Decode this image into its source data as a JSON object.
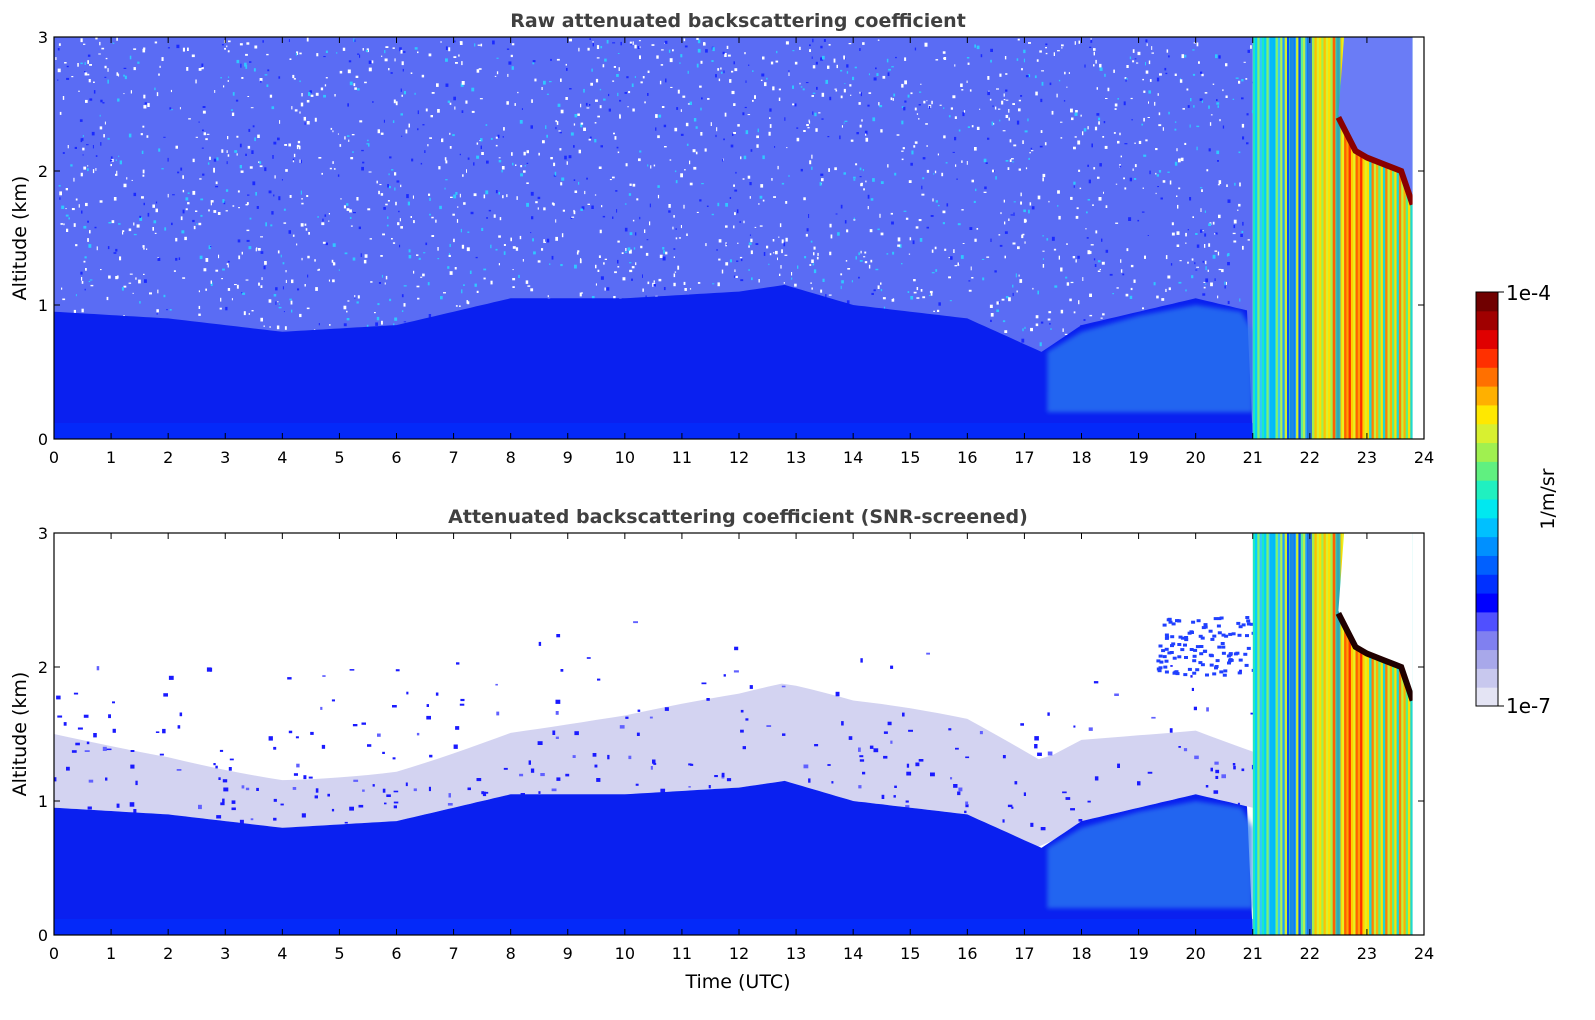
{
  "figure": {
    "xlabel": "Time (UTC)",
    "colorbar": {
      "label": "1/m/sr",
      "max_label": "1e-4",
      "min_label": "1e-7",
      "scale": "log",
      "colors": [
        "#e4e4f4",
        "#c8c8ee",
        "#a8a8ea",
        "#8080f0",
        "#5050ff",
        "#0000ff",
        "#0030ff",
        "#0060ff",
        "#0090ff",
        "#00c0ff",
        "#00e8f0",
        "#20f0c0",
        "#60f080",
        "#a0f050",
        "#d8f030",
        "#ffe800",
        "#ffb000",
        "#ff7000",
        "#ff3000",
        "#e00000",
        "#a00000",
        "#700000"
      ]
    }
  },
  "chart_data": [
    {
      "type": "heatmap",
      "title": "Raw attenuated backscattering coefficient",
      "ylabel": "Altitude (km)",
      "xlabel": "",
      "xlim": [
        0,
        24
      ],
      "ylim": [
        0,
        3
      ],
      "xticks": [
        "0",
        "1",
        "2",
        "3",
        "4",
        "5",
        "6",
        "7",
        "8",
        "9",
        "10",
        "11",
        "12",
        "13",
        "14",
        "15",
        "16",
        "17",
        "18",
        "19",
        "20",
        "21",
        "22",
        "23",
        "24"
      ],
      "yticks": [
        "0",
        "1",
        "2",
        "3"
      ],
      "colorscale_min": "1e-7",
      "colorscale_max": "1e-4",
      "screened": false,
      "boundary_layer_top_km": {
        "hours": [
          0,
          2,
          4,
          6,
          8,
          10,
          12,
          12.8,
          14,
          16,
          17.3,
          18,
          19,
          20,
          21
        ],
        "values": [
          0.95,
          0.9,
          0.8,
          0.85,
          1.05,
          1.05,
          1.1,
          1.15,
          1.0,
          0.9,
          0.65,
          0.85,
          0.95,
          1.05,
          0.95
        ]
      },
      "cloud_layer_top_km": {
        "hours": [
          22.5,
          22.8,
          23.0,
          23.3,
          23.6,
          23.8
        ],
        "values": [
          2.4,
          2.15,
          2.1,
          2.05,
          2.0,
          1.75
        ]
      },
      "precip_onset_hour": 21.0,
      "data_end_hour": 23.8
    },
    {
      "type": "heatmap",
      "title": "Attenuated backscattering coefficient (SNR-screened)",
      "ylabel": "Altitude (km)",
      "xlabel": "Time (UTC)",
      "xlim": [
        0,
        24
      ],
      "ylim": [
        0,
        3
      ],
      "xticks": [
        "0",
        "1",
        "2",
        "3",
        "4",
        "5",
        "6",
        "7",
        "8",
        "9",
        "10",
        "11",
        "12",
        "13",
        "14",
        "15",
        "16",
        "17",
        "18",
        "19",
        "20",
        "21",
        "22",
        "23",
        "24"
      ],
      "yticks": [
        "0",
        "1",
        "2",
        "3"
      ],
      "colorscale_min": "1e-7",
      "colorscale_max": "1e-4",
      "screened": true,
      "boundary_layer_top_km": {
        "hours": [
          0,
          2,
          4,
          6,
          8,
          10,
          12,
          12.8,
          14,
          16,
          17.3,
          18,
          19,
          20,
          21
        ],
        "values": [
          0.95,
          0.9,
          0.8,
          0.85,
          1.05,
          1.05,
          1.1,
          1.15,
          1.0,
          0.9,
          0.65,
          0.85,
          0.95,
          1.05,
          0.95
        ]
      },
      "cloud_layer_top_km": {
        "hours": [
          22.5,
          22.8,
          23.0,
          23.3,
          23.6,
          23.8
        ],
        "values": [
          2.4,
          2.15,
          2.1,
          2.05,
          2.0,
          1.75
        ]
      },
      "precip_onset_hour": 21.0,
      "data_end_hour": 23.8
    }
  ]
}
